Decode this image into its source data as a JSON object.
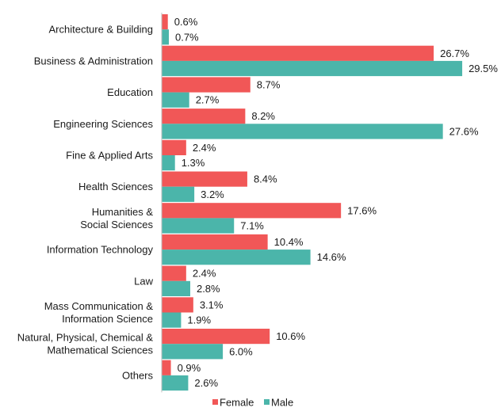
{
  "chart_data": {
    "type": "bar",
    "orientation": "horizontal",
    "title": "",
    "xlabel": "",
    "ylabel": "",
    "xlim": [
      0,
      30
    ],
    "grid": false,
    "legend": "bottom",
    "value_suffix": "%",
    "categories": [
      [
        "Architecture & Building"
      ],
      [
        "Business & Administration"
      ],
      [
        "Education"
      ],
      [
        "Engineering Sciences"
      ],
      [
        "Fine & Applied Arts"
      ],
      [
        "Health Sciences"
      ],
      [
        "Humanities &",
        "Social Sciences"
      ],
      [
        "Information Technology"
      ],
      [
        "Law"
      ],
      [
        "Mass Communication &",
        "Information Science"
      ],
      [
        "Natural, Physical, Chemical &",
        "Mathematical Sciences"
      ],
      [
        "Others"
      ]
    ],
    "series": [
      {
        "name": "Female",
        "color": "#f15757",
        "values": [
          0.6,
          26.7,
          8.7,
          8.2,
          2.4,
          8.4,
          17.6,
          10.4,
          2.4,
          3.1,
          10.6,
          0.9
        ]
      },
      {
        "name": "Male",
        "color": "#4bb5aa",
        "values": [
          0.7,
          29.5,
          2.7,
          27.6,
          1.3,
          3.2,
          7.1,
          14.6,
          2.8,
          1.9,
          6.0,
          2.6
        ]
      }
    ]
  }
}
